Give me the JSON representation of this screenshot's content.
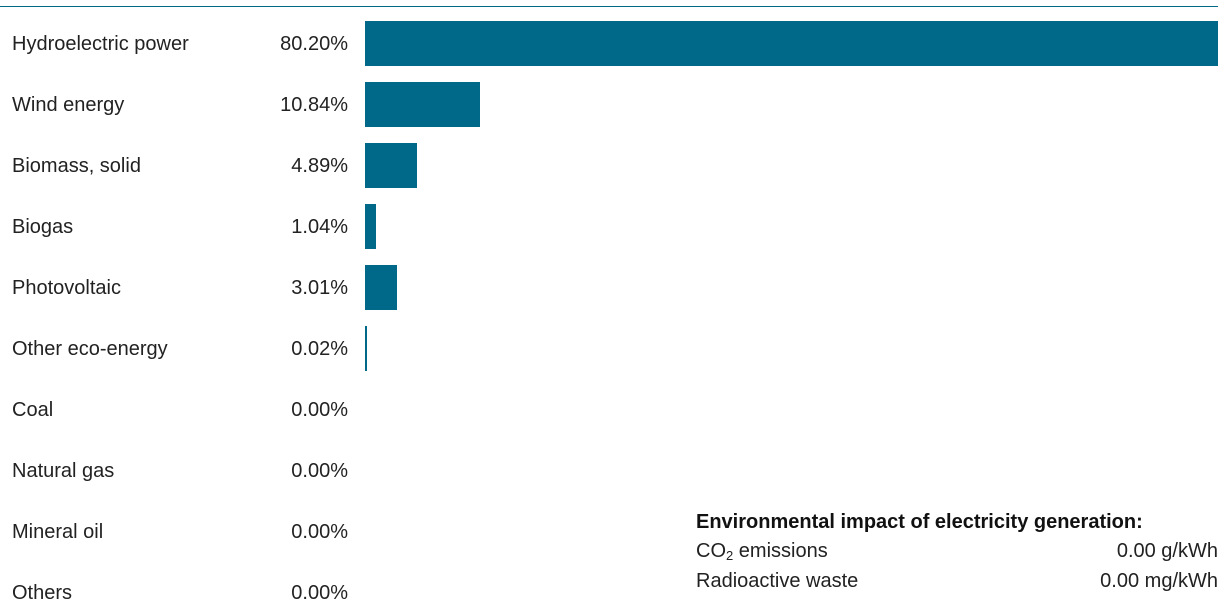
{
  "colors": {
    "bar": "#00698a",
    "rule": "#00698a",
    "text": "#222222"
  },
  "chart_data": {
    "type": "bar",
    "orientation": "horizontal",
    "categories": [
      "Hydroelectric power",
      "Wind energy",
      "Biomass, solid",
      "Biogas",
      "Photovoltaic",
      "Other eco-energy",
      "Coal",
      "Natural gas",
      "Mineral oil",
      "Others"
    ],
    "values": [
      80.2,
      10.84,
      4.89,
      1.04,
      3.01,
      0.02,
      0.0,
      0.0,
      0.0,
      0.0
    ],
    "value_labels": [
      "80.20%",
      "10.84%",
      "4.89%",
      "1.04%",
      "3.01%",
      "0.02%",
      "0.00%",
      "0.00%",
      "0.00%",
      "0.00%"
    ],
    "unit": "%",
    "xlim": [
      0,
      80.2
    ],
    "title": "",
    "xlabel": "",
    "ylabel": "",
    "grid": false
  },
  "impact": {
    "title": "Environmental impact of electricity generation:",
    "co2_label_prefix": "CO",
    "co2_label_sub": "2",
    "co2_label_suffix": " emissions",
    "co2_value": "0.00 g/kWh",
    "waste_label": "Radioactive waste",
    "waste_value": "0.00 mg/kWh"
  }
}
